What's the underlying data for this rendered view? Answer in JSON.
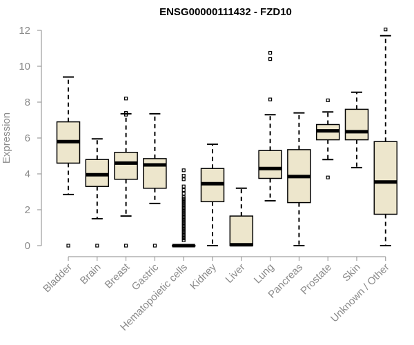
{
  "chart_data": {
    "type": "boxplot",
    "title": "ENSG00000111432 - FZD10",
    "xlabel": "",
    "ylabel": "Expression",
    "ylim": [
      0,
      12
    ],
    "yticks": [
      0,
      2,
      4,
      6,
      8,
      10,
      12
    ],
    "box_color": "#ede6cc",
    "categories": [
      "Bladder",
      "Brain",
      "Breast",
      "Gastric",
      "Hematopoietic cells",
      "Kidney",
      "Liver",
      "Lung",
      "Pancreas",
      "Prostate",
      "Skin",
      "Unknown / Other"
    ],
    "boxes": [
      {
        "q1": 4.6,
        "median": 5.8,
        "q3": 6.9,
        "whisker_low": 2.85,
        "whisker_high": 9.4,
        "outliers": [
          0
        ]
      },
      {
        "q1": 3.3,
        "median": 3.95,
        "q3": 4.8,
        "whisker_low": 1.5,
        "whisker_high": 5.95,
        "outliers": [
          0
        ]
      },
      {
        "q1": 3.7,
        "median": 4.6,
        "q3": 5.2,
        "whisker_low": 1.65,
        "whisker_high": 7.35,
        "outliers": [
          0,
          7.3,
          7.4,
          8.2
        ]
      },
      {
        "q1": 3.2,
        "median": 4.5,
        "q3": 4.85,
        "whisker_low": 2.35,
        "whisker_high": 7.35,
        "outliers": [
          0
        ]
      },
      {
        "q1": 0,
        "median": 0,
        "q3": 0,
        "whisker_low": 0,
        "whisker_high": 0,
        "outliers": [
          0.3,
          0.4,
          0.5,
          0.6,
          0.7,
          0.8,
          0.9,
          1.0,
          1.1,
          1.2,
          1.3,
          1.4,
          1.5,
          1.6,
          1.7,
          1.8,
          1.9,
          2.0,
          2.1,
          2.2,
          2.3,
          2.4,
          2.5,
          2.6,
          2.7,
          2.9,
          3.1,
          3.3,
          3.7,
          3.9,
          4.2
        ]
      },
      {
        "q1": 2.45,
        "median": 3.45,
        "q3": 4.3,
        "whisker_low": 0,
        "whisker_high": 5.65,
        "outliers": []
      },
      {
        "q1": 0,
        "median": 0.05,
        "q3": 1.65,
        "whisker_low": 0,
        "whisker_high": 3.2,
        "outliers": []
      },
      {
        "q1": 3.75,
        "median": 4.3,
        "q3": 5.3,
        "whisker_low": 2.5,
        "whisker_high": 7.3,
        "outliers": [
          8.15,
          10.4,
          10.75
        ]
      },
      {
        "q1": 2.4,
        "median": 3.85,
        "q3": 5.35,
        "whisker_low": 0,
        "whisker_high": 7.4,
        "outliers": []
      },
      {
        "q1": 5.9,
        "median": 6.4,
        "q3": 6.75,
        "whisker_low": 4.8,
        "whisker_high": 7.45,
        "outliers": [
          3.8,
          8.1
        ]
      },
      {
        "q1": 5.9,
        "median": 6.35,
        "q3": 7.6,
        "whisker_low": 4.35,
        "whisker_high": 8.55,
        "outliers": []
      },
      {
        "q1": 1.75,
        "median": 3.55,
        "q3": 5.8,
        "whisker_low": 0,
        "whisker_high": 11.7,
        "outliers": [
          12.05
        ]
      }
    ]
  }
}
